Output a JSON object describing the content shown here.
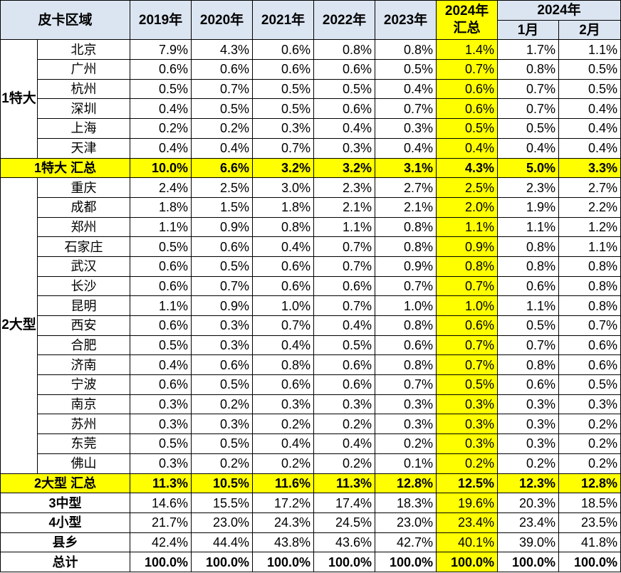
{
  "headers": {
    "region": "皮卡区域",
    "years": [
      "2019年",
      "2020年",
      "2021年",
      "2022年",
      "2023年"
    ],
    "y2024_total": "2024年\n汇总",
    "y2024_group": "2024年",
    "months": [
      "1月",
      "2月"
    ]
  },
  "groups": [
    {
      "name": "1特大",
      "rows": [
        {
          "city": "北京",
          "values": [
            "7.9%",
            "4.3%",
            "0.6%",
            "0.8%",
            "0.8%",
            "1.4%",
            "1.7%",
            "1.1%"
          ]
        },
        {
          "city": "广州",
          "values": [
            "0.6%",
            "0.6%",
            "0.6%",
            "0.6%",
            "0.5%",
            "0.7%",
            "0.8%",
            "0.5%"
          ]
        },
        {
          "city": "杭州",
          "values": [
            "0.5%",
            "0.7%",
            "0.5%",
            "0.5%",
            "0.4%",
            "0.6%",
            "0.7%",
            "0.5%"
          ]
        },
        {
          "city": "深圳",
          "values": [
            "0.4%",
            "0.5%",
            "0.5%",
            "0.6%",
            "0.7%",
            "0.6%",
            "0.7%",
            "0.4%"
          ]
        },
        {
          "city": "上海",
          "values": [
            "0.2%",
            "0.2%",
            "0.3%",
            "0.4%",
            "0.3%",
            "0.5%",
            "0.5%",
            "0.4%"
          ]
        },
        {
          "city": "天津",
          "values": [
            "0.4%",
            "0.4%",
            "0.7%",
            "0.3%",
            "0.4%",
            "0.4%",
            "0.4%",
            "0.4%"
          ]
        }
      ],
      "summary": {
        "label": "1特大 汇总",
        "values": [
          "10.0%",
          "6.6%",
          "3.2%",
          "3.2%",
          "3.1%",
          "4.3%",
          "5.0%",
          "3.3%"
        ]
      }
    },
    {
      "name": "2大型",
      "rows": [
        {
          "city": "重庆",
          "values": [
            "2.4%",
            "2.5%",
            "3.0%",
            "2.3%",
            "2.7%",
            "2.5%",
            "2.3%",
            "2.7%"
          ]
        },
        {
          "city": "成都",
          "values": [
            "1.8%",
            "1.5%",
            "1.8%",
            "2.1%",
            "2.1%",
            "2.0%",
            "1.9%",
            "2.2%"
          ]
        },
        {
          "city": "郑州",
          "values": [
            "1.1%",
            "0.9%",
            "0.8%",
            "1.1%",
            "0.8%",
            "1.1%",
            "1.1%",
            "1.2%"
          ]
        },
        {
          "city": "石家庄",
          "values": [
            "0.5%",
            "0.6%",
            "0.4%",
            "0.7%",
            "0.8%",
            "0.9%",
            "0.8%",
            "1.1%"
          ]
        },
        {
          "city": "武汉",
          "values": [
            "0.6%",
            "0.5%",
            "0.6%",
            "0.7%",
            "0.9%",
            "0.8%",
            "0.8%",
            "0.8%"
          ]
        },
        {
          "city": "长沙",
          "values": [
            "0.6%",
            "0.7%",
            "0.6%",
            "0.6%",
            "0.7%",
            "0.7%",
            "0.6%",
            "0.8%"
          ]
        },
        {
          "city": "昆明",
          "values": [
            "1.1%",
            "0.9%",
            "1.0%",
            "0.7%",
            "1.0%",
            "1.0%",
            "1.1%",
            "0.8%"
          ]
        },
        {
          "city": "西安",
          "values": [
            "0.6%",
            "0.3%",
            "0.7%",
            "0.4%",
            "0.8%",
            "0.6%",
            "0.5%",
            "0.7%"
          ]
        },
        {
          "city": "合肥",
          "values": [
            "0.5%",
            "0.3%",
            "0.4%",
            "0.5%",
            "0.6%",
            "0.7%",
            "0.7%",
            "0.6%"
          ]
        },
        {
          "city": "济南",
          "values": [
            "0.4%",
            "0.6%",
            "0.8%",
            "0.6%",
            "0.8%",
            "0.7%",
            "0.8%",
            "0.6%"
          ]
        },
        {
          "city": "宁波",
          "values": [
            "0.6%",
            "0.5%",
            "0.6%",
            "0.6%",
            "0.7%",
            "0.5%",
            "0.6%",
            "0.5%"
          ]
        },
        {
          "city": "南京",
          "values": [
            "0.3%",
            "0.2%",
            "0.3%",
            "0.3%",
            "0.3%",
            "0.3%",
            "0.3%",
            "0.3%"
          ]
        },
        {
          "city": "苏州",
          "values": [
            "0.3%",
            "0.3%",
            "0.2%",
            "0.2%",
            "0.3%",
            "0.3%",
            "0.3%",
            "0.2%"
          ]
        },
        {
          "city": "东莞",
          "values": [
            "0.5%",
            "0.5%",
            "0.4%",
            "0.4%",
            "0.2%",
            "0.3%",
            "0.3%",
            "0.2%"
          ]
        },
        {
          "city": "佛山",
          "values": [
            "0.3%",
            "0.2%",
            "0.2%",
            "0.2%",
            "0.1%",
            "0.2%",
            "0.2%",
            "0.2%"
          ]
        }
      ],
      "summary": {
        "label": "2大型 汇总",
        "values": [
          "11.3%",
          "10.5%",
          "11.6%",
          "11.3%",
          "12.8%",
          "12.5%",
          "12.3%",
          "12.8%"
        ]
      }
    }
  ],
  "others": [
    {
      "label": "3中型",
      "values": [
        "14.6%",
        "15.5%",
        "17.2%",
        "17.4%",
        "18.3%",
        "19.6%",
        "20.3%",
        "18.5%"
      ]
    },
    {
      "label": "4小型",
      "values": [
        "21.7%",
        "23.0%",
        "24.3%",
        "24.5%",
        "23.0%",
        "23.4%",
        "23.4%",
        "23.5%"
      ]
    },
    {
      "label": "县乡",
      "values": [
        "42.4%",
        "44.4%",
        "43.8%",
        "43.6%",
        "42.7%",
        "40.1%",
        "39.0%",
        "41.8%"
      ]
    }
  ],
  "total": {
    "label": "总计",
    "values": [
      "100.0%",
      "100.0%",
      "100.0%",
      "100.0%",
      "100.0%",
      "100.0%",
      "100.0%",
      "100.0%"
    ]
  },
  "colors": {
    "header_bg": "#dbe5f1",
    "highlight": "#ffff00",
    "border": "#000000"
  }
}
